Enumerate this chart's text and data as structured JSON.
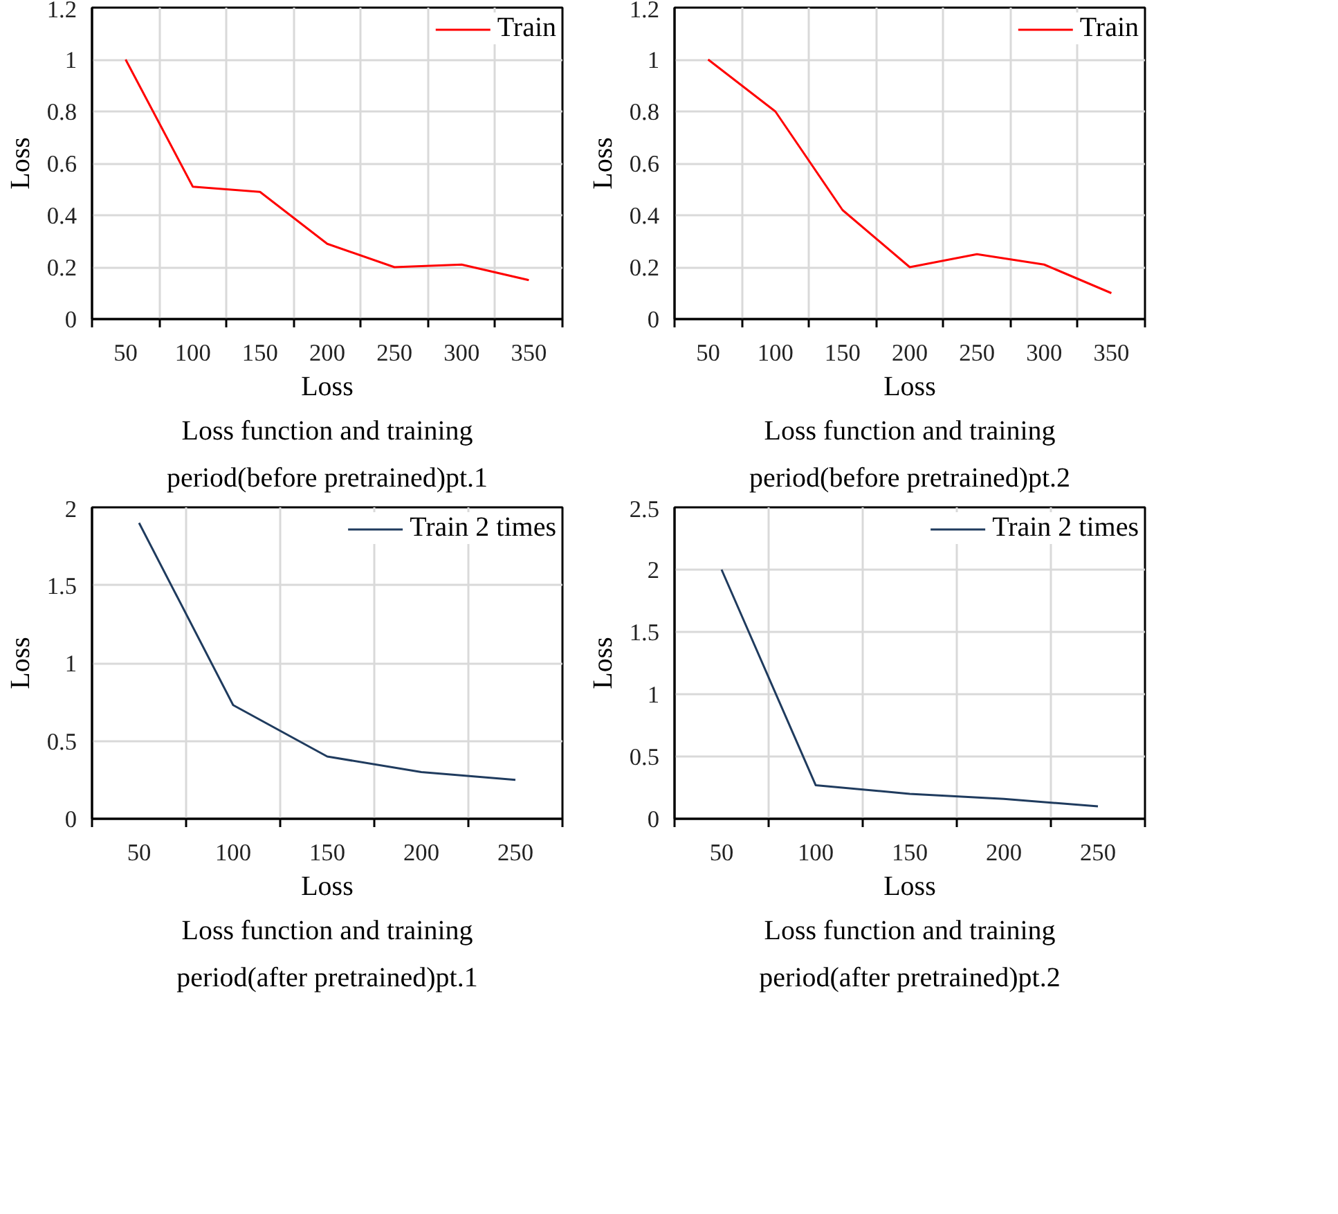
{
  "chart_data": [
    {
      "type": "line",
      "title": "Loss function and training\nperiod(before pretrained)pt.1",
      "xlabel": "Loss",
      "ylabel": "Loss",
      "categories": [
        "50",
        "100",
        "150",
        "200",
        "250",
        "300",
        "350"
      ],
      "ylim": [
        0,
        1.2
      ],
      "yticks": [
        0,
        0.2,
        0.4,
        0.6,
        0.8,
        1,
        1.2
      ],
      "grid": true,
      "legend": "top right",
      "series": [
        {
          "name": "Train",
          "color": "#ff0000",
          "values": [
            1.0,
            0.51,
            0.49,
            0.29,
            0.2,
            0.21,
            0.15
          ]
        }
      ]
    },
    {
      "type": "line",
      "title": "Loss function and training\nperiod(before pretrained)pt.2",
      "xlabel": "Loss",
      "ylabel": "Loss",
      "categories": [
        "50",
        "100",
        "150",
        "200",
        "250",
        "300",
        "350"
      ],
      "ylim": [
        0,
        1.2
      ],
      "yticks": [
        0,
        0.2,
        0.4,
        0.6,
        0.8,
        1,
        1.2
      ],
      "grid": true,
      "legend": "top right",
      "series": [
        {
          "name": "Train",
          "color": "#ff0000",
          "values": [
            1.0,
            0.8,
            0.42,
            0.2,
            0.25,
            0.21,
            0.1
          ]
        }
      ]
    },
    {
      "type": "line",
      "title": "Loss function and training\nperiod(after pretrained)pt.1",
      "xlabel": "Loss",
      "ylabel": "Loss",
      "categories": [
        "50",
        "100",
        "150",
        "200",
        "250"
      ],
      "ylim": [
        0,
        2
      ],
      "yticks": [
        0,
        0.5,
        1,
        1.5,
        2
      ],
      "grid": true,
      "legend": "top right",
      "series": [
        {
          "name": "Train 2 times",
          "color": "#1f3b5e",
          "values": [
            1.9,
            0.73,
            0.4,
            0.3,
            0.25
          ]
        }
      ]
    },
    {
      "type": "line",
      "title": "Loss function and training\nperiod(after pretrained)pt.2",
      "xlabel": "Loss",
      "ylabel": "Loss",
      "categories": [
        "50",
        "100",
        "150",
        "200",
        "250"
      ],
      "ylim": [
        0,
        2.5
      ],
      "yticks": [
        0,
        0.5,
        1,
        1.5,
        2,
        2.5
      ],
      "grid": true,
      "legend": "top right",
      "series": [
        {
          "name": "Train 2 times",
          "color": "#1f3b5e",
          "values": [
            2,
            0.27,
            0.2,
            0.16,
            0.1
          ]
        }
      ]
    }
  ]
}
